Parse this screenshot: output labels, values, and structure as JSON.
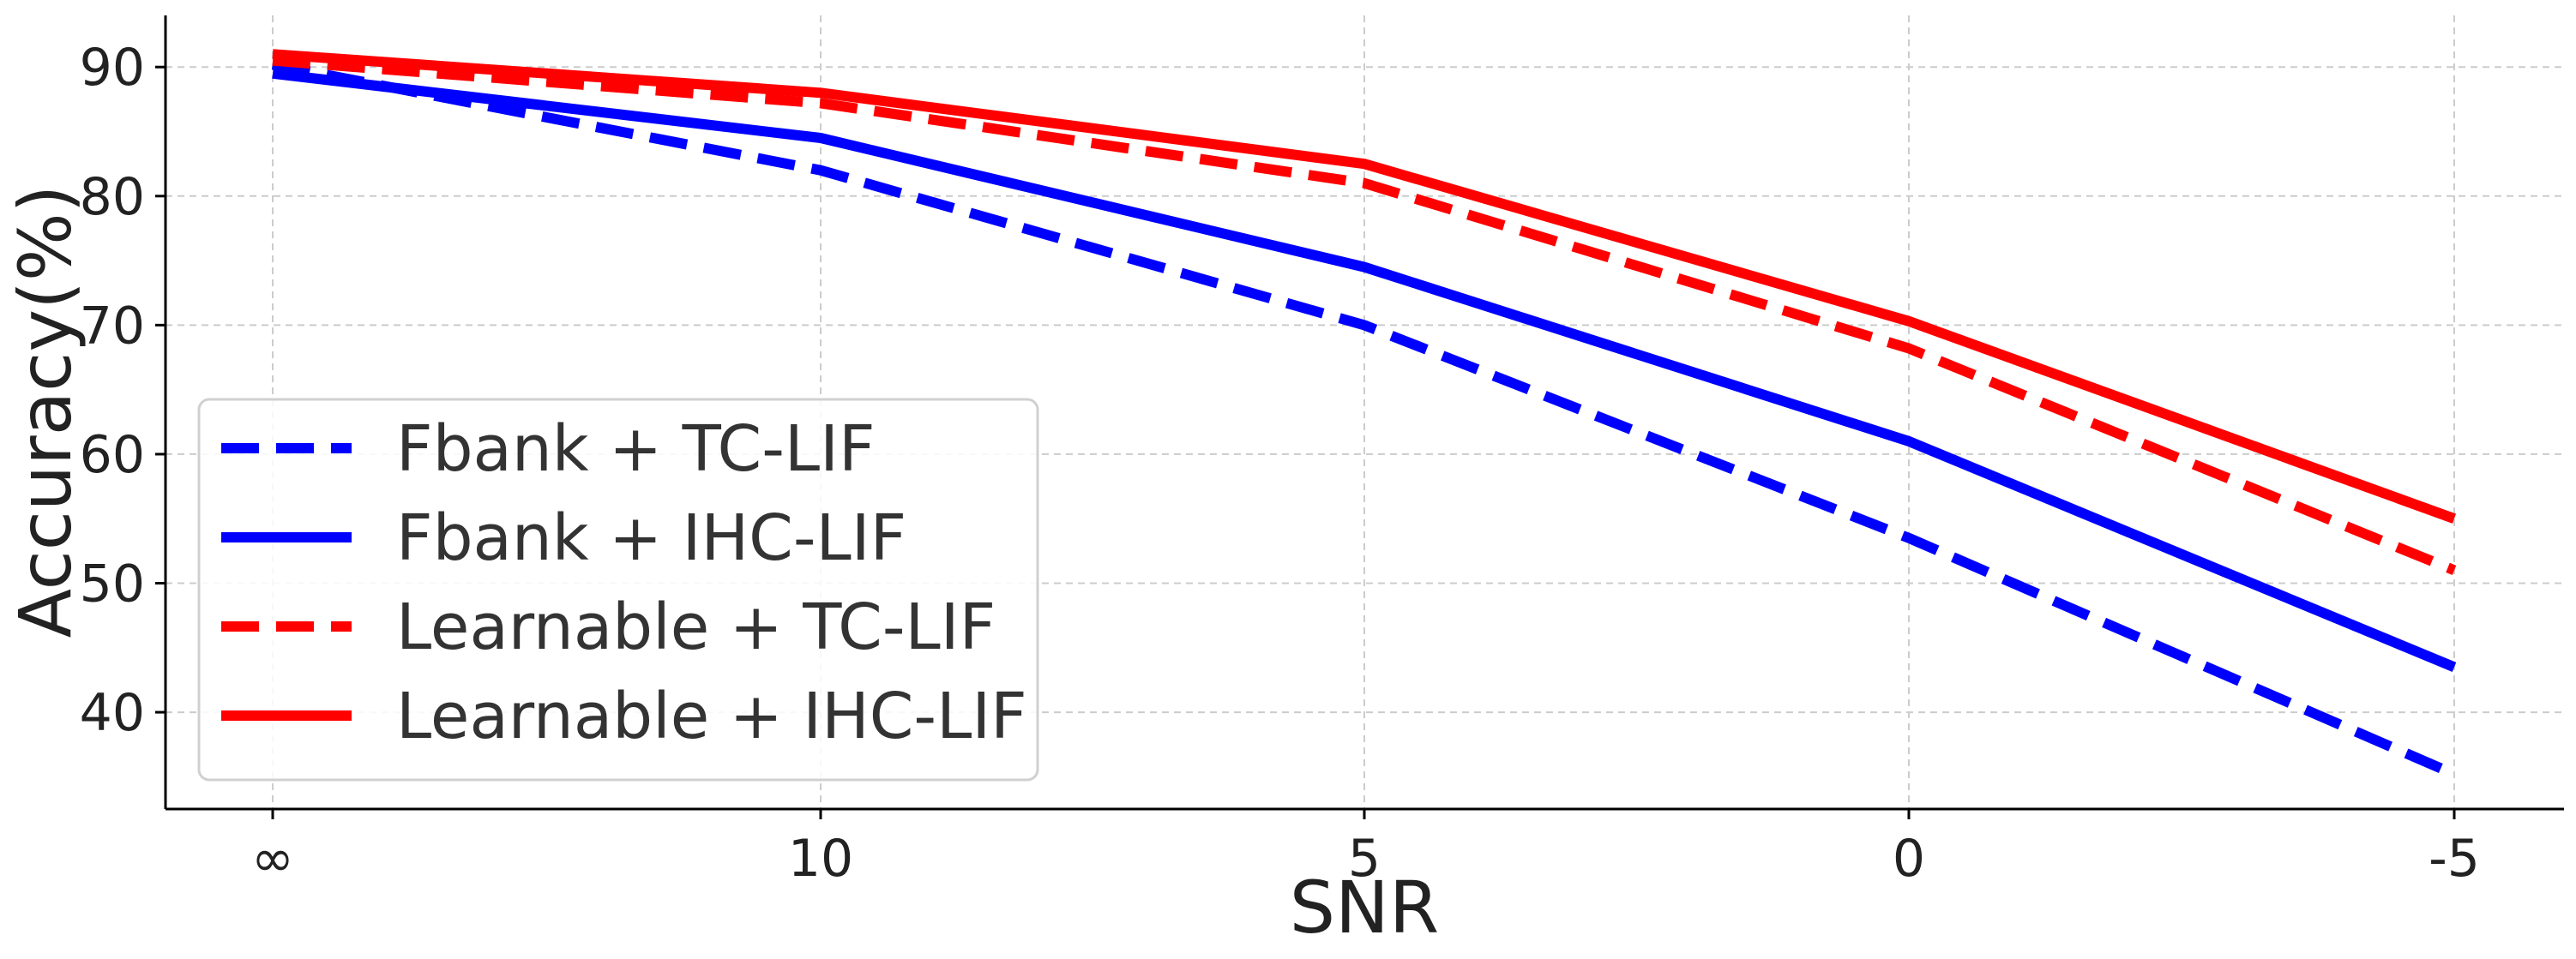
{
  "chart_data": {
    "type": "line",
    "title": "",
    "xlabel": "SNR",
    "ylabel": "Accuracy(%)",
    "categories": [
      "∞",
      "10",
      "5",
      "0",
      "-5"
    ],
    "ylim": [
      32.5,
      94
    ],
    "yticks": [
      40,
      50,
      60,
      70,
      80,
      90
    ],
    "grid": true,
    "legend_position": "lower-left",
    "series": [
      {
        "name": "Fbank + TC-LIF",
        "color": "#0000ff",
        "style": "dashed",
        "values": [
          90.2,
          82.0,
          70.0,
          53.5,
          35.2
        ]
      },
      {
        "name": "Fbank + IHC-LIF",
        "color": "#0000ff",
        "style": "solid",
        "values": [
          89.5,
          84.5,
          74.5,
          61.0,
          43.5
        ]
      },
      {
        "name": "Learnable + TC-LIF",
        "color": "#ff0000",
        "style": "dashed",
        "values": [
          90.5,
          87.2,
          81.0,
          68.2,
          51.0
        ]
      },
      {
        "name": "Learnable + IHC-LIF",
        "color": "#ff0000",
        "style": "solid",
        "values": [
          91.0,
          88.0,
          82.5,
          70.3,
          55.0
        ]
      }
    ]
  }
}
